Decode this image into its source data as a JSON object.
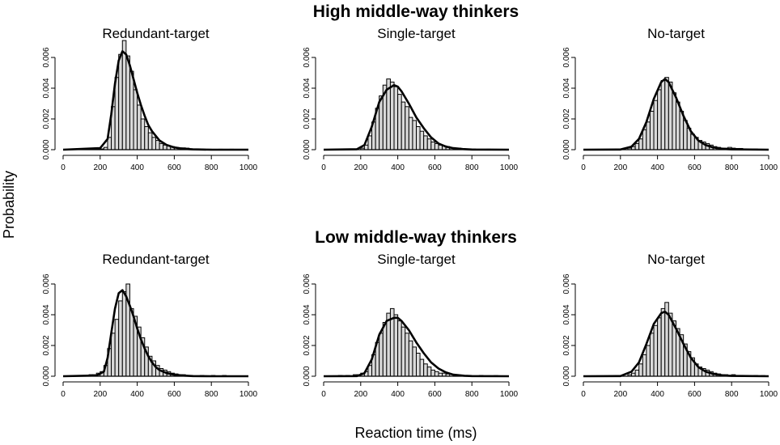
{
  "figure": {
    "group_titles": [
      "High middle-way thinkers",
      "Low middle-way thinkers"
    ],
    "xlabel": "Reaction time (ms)",
    "ylabel": "Probability",
    "bar_color": "#d9d9d9",
    "curve_color": "#000000"
  },
  "chart_data": [
    {
      "type": "bar",
      "group": "High middle-way thinkers",
      "title": "Redundant-target",
      "x_ticks": [
        0,
        200,
        400,
        600,
        800,
        1000
      ],
      "y_ticks": [
        "0.000",
        "0.002",
        "0.004",
        "0.006"
      ],
      "xlim": [
        0,
        1000
      ],
      "ylim": [
        0,
        0.0065
      ],
      "bin_width": 20,
      "bins": [
        [
          0,
          0
        ],
        [
          180,
          3e-05
        ],
        [
          200,
          5e-05
        ],
        [
          220,
          0.00015
        ],
        [
          240,
          0.0008
        ],
        [
          260,
          0.0028
        ],
        [
          280,
          0.0047
        ],
        [
          300,
          0.0062
        ],
        [
          320,
          0.0071
        ],
        [
          340,
          0.0061
        ],
        [
          360,
          0.0051
        ],
        [
          380,
          0.0039
        ],
        [
          400,
          0.0029
        ],
        [
          420,
          0.002
        ],
        [
          440,
          0.0015
        ],
        [
          460,
          0.0011
        ],
        [
          480,
          0.0008
        ],
        [
          500,
          0.0006
        ],
        [
          520,
          0.0004
        ],
        [
          540,
          0.0003
        ],
        [
          560,
          0.00025
        ],
        [
          580,
          0.0002
        ],
        [
          600,
          0.00015
        ],
        [
          620,
          0.0001
        ],
        [
          640,
          0.00012
        ],
        [
          660,
          0.0001
        ],
        [
          680,
          5e-05
        ],
        [
          700,
          5e-05
        ],
        [
          720,
          3e-05
        ],
        [
          740,
          3e-05
        ],
        [
          780,
          3e-05
        ],
        [
          840,
          3e-05
        ],
        [
          900,
          3e-05
        ]
      ],
      "curve": {
        "x": [
          0,
          200,
          240,
          260,
          280,
          300,
          320,
          340,
          360,
          380,
          400,
          420,
          440,
          460,
          480,
          500,
          520,
          560,
          600,
          650,
          700,
          800,
          1000
        ],
        "y": [
          0,
          0.0001,
          0.0007,
          0.0023,
          0.0043,
          0.0058,
          0.0064,
          0.0062,
          0.0055,
          0.0046,
          0.0037,
          0.0029,
          0.0022,
          0.0016,
          0.0012,
          0.0009,
          0.0006,
          0.0003,
          0.00015,
          6e-05,
          2e-05,
          0,
          0
        ]
      }
    },
    {
      "type": "bar",
      "group": "High middle-way thinkers",
      "title": "Single-target",
      "x_ticks": [
        0,
        200,
        400,
        600,
        800,
        1000
      ],
      "y_ticks": [
        "0.000",
        "0.002",
        "0.004",
        "0.006"
      ],
      "xlim": [
        0,
        1000
      ],
      "ylim": [
        0,
        0.0065
      ],
      "bin_width": 20,
      "bins": [
        [
          200,
          0.0001
        ],
        [
          220,
          0.0003
        ],
        [
          240,
          0.0009
        ],
        [
          260,
          0.0018
        ],
        [
          280,
          0.0027
        ],
        [
          300,
          0.0035
        ],
        [
          320,
          0.0042
        ],
        [
          340,
          0.0046
        ],
        [
          360,
          0.0044
        ],
        [
          380,
          0.0041
        ],
        [
          400,
          0.0036
        ],
        [
          420,
          0.0031
        ],
        [
          440,
          0.0028
        ],
        [
          460,
          0.0021
        ],
        [
          480,
          0.0019
        ],
        [
          500,
          0.0015
        ],
        [
          520,
          0.0012
        ],
        [
          540,
          0.0009
        ],
        [
          560,
          0.0007
        ],
        [
          580,
          0.0005
        ],
        [
          600,
          0.0004
        ],
        [
          620,
          0.0003
        ],
        [
          640,
          0.00025
        ],
        [
          660,
          0.0002
        ],
        [
          680,
          0.00012
        ],
        [
          700,
          0.0001
        ],
        [
          720,
          0.0001
        ],
        [
          740,
          5e-05
        ],
        [
          760,
          5e-05
        ],
        [
          800,
          4e-05
        ],
        [
          880,
          3e-05
        ]
      ],
      "curve": {
        "x": [
          0,
          180,
          220,
          260,
          300,
          340,
          380,
          400,
          420,
          460,
          500,
          540,
          580,
          620,
          660,
          700,
          750,
          800,
          1000
        ],
        "y": [
          0,
          3e-05,
          0.0003,
          0.0015,
          0.0031,
          0.0039,
          0.0042,
          0.0041,
          0.0038,
          0.003,
          0.0021,
          0.0014,
          0.0008,
          0.0004,
          0.0002,
          0.0001,
          4e-05,
          1e-05,
          0
        ]
      }
    },
    {
      "type": "bar",
      "group": "High middle-way thinkers",
      "title": "No-target",
      "x_ticks": [
        0,
        200,
        400,
        600,
        800,
        1000
      ],
      "y_ticks": [
        "0.000",
        "0.002",
        "0.004",
        "0.006"
      ],
      "xlim": [
        0,
        1000
      ],
      "ylim": [
        0,
        0.0065
      ],
      "bin_width": 20,
      "bins": [
        [
          240,
          0.0001
        ],
        [
          260,
          0.0002
        ],
        [
          280,
          0.0004
        ],
        [
          300,
          0.0007
        ],
        [
          320,
          0.0013
        ],
        [
          340,
          0.0018
        ],
        [
          360,
          0.0025
        ],
        [
          380,
          0.0032
        ],
        [
          400,
          0.0039
        ],
        [
          420,
          0.0045
        ],
        [
          440,
          0.0047
        ],
        [
          460,
          0.0044
        ],
        [
          480,
          0.0037
        ],
        [
          500,
          0.0031
        ],
        [
          520,
          0.0025
        ],
        [
          540,
          0.0019
        ],
        [
          560,
          0.0014
        ],
        [
          580,
          0.001
        ],
        [
          600,
          0.0008
        ],
        [
          620,
          0.0006
        ],
        [
          640,
          0.0005
        ],
        [
          660,
          0.0004
        ],
        [
          680,
          0.0003
        ],
        [
          700,
          0.0002
        ],
        [
          720,
          0.00015
        ],
        [
          740,
          0.0001
        ],
        [
          760,
          0.0001
        ],
        [
          780,
          0.00015
        ],
        [
          800,
          0.0001
        ],
        [
          820,
          8e-05
        ],
        [
          840,
          8e-05
        ],
        [
          860,
          5e-05
        ],
        [
          880,
          5e-05
        ],
        [
          920,
          4e-05
        ]
      ],
      "curve": {
        "x": [
          0,
          200,
          260,
          300,
          340,
          380,
          420,
          440,
          460,
          500,
          540,
          580,
          620,
          660,
          700,
          760,
          800,
          1000
        ],
        "y": [
          0,
          1e-05,
          0.0002,
          0.0007,
          0.0018,
          0.0033,
          0.0044,
          0.0046,
          0.0044,
          0.0034,
          0.0022,
          0.0012,
          0.0006,
          0.0003,
          0.00015,
          5e-05,
          2e-05,
          0
        ]
      }
    },
    {
      "type": "bar",
      "group": "Low middle-way thinkers",
      "title": "Redundant-target",
      "x_ticks": [
        0,
        200,
        400,
        600,
        800,
        1000
      ],
      "y_ticks": [
        "0.000",
        "0.002",
        "0.004",
        "0.006"
      ],
      "xlim": [
        0,
        1000
      ],
      "ylim": [
        0,
        0.0065
      ],
      "bin_width": 20,
      "bins": [
        [
          60,
          5e-05
        ],
        [
          100,
          5e-05
        ],
        [
          140,
          0.0001
        ],
        [
          160,
          0.0001
        ],
        [
          180,
          0.0002
        ],
        [
          200,
          0.0003
        ],
        [
          220,
          0.0007
        ],
        [
          240,
          0.0018
        ],
        [
          260,
          0.0028
        ],
        [
          280,
          0.0037
        ],
        [
          300,
          0.0049
        ],
        [
          320,
          0.0055
        ],
        [
          340,
          0.006
        ],
        [
          360,
          0.0044
        ],
        [
          380,
          0.0039
        ],
        [
          400,
          0.0032
        ],
        [
          420,
          0.0025
        ],
        [
          440,
          0.0019
        ],
        [
          460,
          0.0013
        ],
        [
          480,
          0.001
        ],
        [
          500,
          0.0007
        ],
        [
          520,
          0.0005
        ],
        [
          540,
          0.0004
        ],
        [
          560,
          0.0003
        ],
        [
          580,
          0.0002
        ],
        [
          600,
          0.00015
        ],
        [
          640,
          0.0001
        ],
        [
          680,
          5e-05
        ],
        [
          740,
          5e-05
        ],
        [
          800,
          5e-05
        ],
        [
          860,
          5e-05
        ]
      ],
      "curve": {
        "x": [
          0,
          180,
          220,
          240,
          260,
          280,
          300,
          320,
          340,
          360,
          380,
          400,
          420,
          440,
          460,
          480,
          500,
          520,
          560,
          600,
          650,
          700,
          800,
          1000
        ],
        "y": [
          0,
          5e-05,
          0.0003,
          0.0012,
          0.0028,
          0.0044,
          0.0054,
          0.0056,
          0.0052,
          0.0046,
          0.0039,
          0.0031,
          0.0024,
          0.0018,
          0.0013,
          0.0009,
          0.0006,
          0.0004,
          0.0002,
          0.0001,
          4e-05,
          1e-05,
          0,
          0
        ]
      }
    },
    {
      "type": "bar",
      "group": "Low middle-way thinkers",
      "title": "Single-target",
      "x_ticks": [
        0,
        200,
        400,
        600,
        800,
        1000
      ],
      "y_ticks": [
        "0.000",
        "0.002",
        "0.004",
        "0.006"
      ],
      "xlim": [
        0,
        1000
      ],
      "ylim": [
        0,
        0.0065
      ],
      "bin_width": 20,
      "bins": [
        [
          80,
          5e-05
        ],
        [
          120,
          5e-05
        ],
        [
          160,
          0.0001
        ],
        [
          180,
          0.0001
        ],
        [
          200,
          0.0002
        ],
        [
          220,
          0.0003
        ],
        [
          240,
          0.0007
        ],
        [
          260,
          0.0014
        ],
        [
          280,
          0.0022
        ],
        [
          300,
          0.0028
        ],
        [
          320,
          0.0035
        ],
        [
          340,
          0.0041
        ],
        [
          360,
          0.0044
        ],
        [
          380,
          0.004
        ],
        [
          400,
          0.0036
        ],
        [
          420,
          0.0032
        ],
        [
          440,
          0.0028
        ],
        [
          460,
          0.0023
        ],
        [
          480,
          0.0019
        ],
        [
          500,
          0.0015
        ],
        [
          520,
          0.0011
        ],
        [
          540,
          0.0008
        ],
        [
          560,
          0.0006
        ],
        [
          580,
          0.0004
        ],
        [
          600,
          0.0003
        ],
        [
          620,
          0.0002
        ],
        [
          640,
          0.0002
        ],
        [
          660,
          0.00015
        ],
        [
          700,
          0.0001
        ],
        [
          760,
          5e-05
        ],
        [
          840,
          5e-05
        ],
        [
          920,
          4e-05
        ]
      ],
      "curve": {
        "x": [
          0,
          180,
          220,
          260,
          300,
          340,
          380,
          400,
          420,
          460,
          500,
          540,
          580,
          620,
          660,
          700,
          760,
          800,
          1000
        ],
        "y": [
          0,
          1e-05,
          0.0002,
          0.0011,
          0.0027,
          0.0036,
          0.0038,
          0.0038,
          0.0036,
          0.003,
          0.0022,
          0.0015,
          0.0009,
          0.0005,
          0.00025,
          0.0001,
          3e-05,
          1e-05,
          0
        ]
      }
    },
    {
      "type": "bar",
      "group": "Low middle-way thinkers",
      "title": "No-target",
      "x_ticks": [
        0,
        200,
        400,
        600,
        800,
        1000
      ],
      "y_ticks": [
        "0.000",
        "0.002",
        "0.004",
        "0.006"
      ],
      "xlim": [
        0,
        1000
      ],
      "ylim": [
        0,
        0.0065
      ],
      "bin_width": 20,
      "bins": [
        [
          240,
          0.0001
        ],
        [
          260,
          0.0002
        ],
        [
          280,
          0.0004
        ],
        [
          300,
          0.0008
        ],
        [
          320,
          0.0014
        ],
        [
          340,
          0.002
        ],
        [
          360,
          0.0028
        ],
        [
          380,
          0.0033
        ],
        [
          400,
          0.0038
        ],
        [
          420,
          0.0044
        ],
        [
          440,
          0.0048
        ],
        [
          460,
          0.0041
        ],
        [
          480,
          0.0036
        ],
        [
          500,
          0.0031
        ],
        [
          520,
          0.0027
        ],
        [
          540,
          0.0021
        ],
        [
          560,
          0.0016
        ],
        [
          580,
          0.0012
        ],
        [
          600,
          0.0008
        ],
        [
          620,
          0.0006
        ],
        [
          640,
          0.0005
        ],
        [
          660,
          0.0004
        ],
        [
          680,
          0.0003
        ],
        [
          700,
          0.0002
        ],
        [
          720,
          0.00015
        ],
        [
          740,
          0.0001
        ],
        [
          760,
          0.0001
        ],
        [
          800,
          0.0001
        ],
        [
          840,
          5e-05
        ],
        [
          920,
          5e-05
        ],
        [
          960,
          4e-05
        ]
      ],
      "curve": {
        "x": [
          0,
          200,
          260,
          300,
          340,
          380,
          420,
          440,
          460,
          500,
          540,
          580,
          620,
          660,
          700,
          760,
          800,
          1000
        ],
        "y": [
          0,
          1e-05,
          0.0003,
          0.0009,
          0.0021,
          0.0034,
          0.0041,
          0.0042,
          0.004,
          0.0031,
          0.0021,
          0.0012,
          0.0006,
          0.0003,
          0.00015,
          5e-05,
          2e-05,
          0
        ]
      }
    }
  ]
}
